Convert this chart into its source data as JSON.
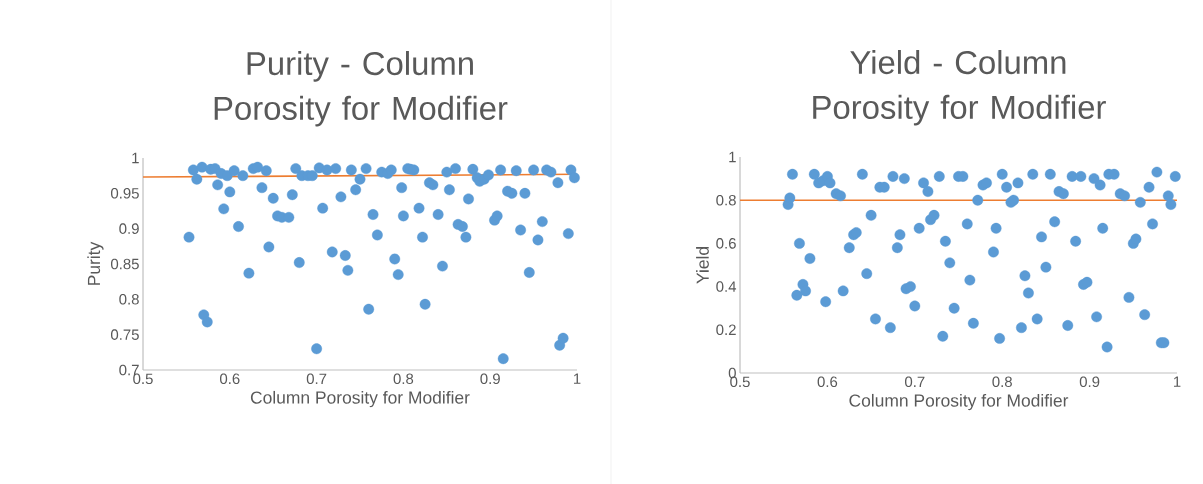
{
  "chart_data": [
    {
      "type": "scatter",
      "title": "Purity - Column Porosity for Modifier",
      "xlabel": "Column Porosity for Modifier",
      "ylabel": "Purity",
      "xlim": [
        0.5,
        1
      ],
      "ylim": [
        0.7,
        1
      ],
      "xticks": [
        0.5,
        0.6,
        0.7,
        0.8,
        0.9,
        1
      ],
      "yticks": [
        0.7,
        0.75,
        0.8,
        0.85,
        0.9,
        0.95,
        1
      ],
      "marker": "circle",
      "series": [
        {
          "color": "#5b9bd5",
          "x": [
            0.553,
            0.558,
            0.562,
            0.568,
            0.57,
            0.574,
            0.578,
            0.583,
            0.586,
            0.59,
            0.593,
            0.597,
            0.6,
            0.605,
            0.61,
            0.615,
            0.622,
            0.627,
            0.632,
            0.637,
            0.642,
            0.645,
            0.65,
            0.655,
            0.66,
            0.668,
            0.672,
            0.676,
            0.68,
            0.683,
            0.69,
            0.695,
            0.7,
            0.703,
            0.707,
            0.712,
            0.718,
            0.722,
            0.728,
            0.733,
            0.736,
            0.74,
            0.745,
            0.75,
            0.757,
            0.76,
            0.765,
            0.77,
            0.775,
            0.782,
            0.786,
            0.79,
            0.794,
            0.798,
            0.8,
            0.805,
            0.808,
            0.812,
            0.818,
            0.822,
            0.825,
            0.83,
            0.834,
            0.84,
            0.845,
            0.85,
            0.853,
            0.86,
            0.863,
            0.868,
            0.872,
            0.875,
            0.88,
            0.885,
            0.888,
            0.893,
            0.898,
            0.905,
            0.908,
            0.912,
            0.915,
            0.92,
            0.925,
            0.93,
            0.935,
            0.94,
            0.945,
            0.95,
            0.955,
            0.96,
            0.965,
            0.97,
            0.978,
            0.98,
            0.984,
            0.99,
            0.993,
            0.997
          ],
          "values": [
            0.888,
            0.983,
            0.97,
            0.987,
            0.778,
            0.768,
            0.984,
            0.985,
            0.962,
            0.978,
            0.928,
            0.975,
            0.952,
            0.982,
            0.903,
            0.975,
            0.837,
            0.985,
            0.987,
            0.958,
            0.982,
            0.874,
            0.943,
            0.918,
            0.916,
            0.916,
            0.948,
            0.985,
            0.852,
            0.975,
            0.975,
            0.975,
            0.73,
            0.986,
            0.929,
            0.983,
            0.867,
            0.985,
            0.945,
            0.862,
            0.841,
            0.983,
            0.955,
            0.97,
            0.985,
            0.786,
            0.92,
            0.891,
            0.98,
            0.978,
            0.983,
            0.857,
            0.835,
            0.958,
            0.918,
            0.985,
            0.984,
            0.983,
            0.929,
            0.888,
            0.793,
            0.965,
            0.962,
            0.92,
            0.847,
            0.98,
            0.955,
            0.985,
            0.906,
            0.903,
            0.888,
            0.942,
            0.984,
            0.972,
            0.967,
            0.97,
            0.976,
            0.912,
            0.918,
            0.983,
            0.716,
            0.953,
            0.95,
            0.982,
            0.898,
            0.95,
            0.838,
            0.983,
            0.884,
            0.91,
            0.983,
            0.98,
            0.965,
            0.735,
            0.745,
            0.893,
            0.983,
            0.972
          ]
        },
        {
          "type": "line",
          "marker": "none",
          "color": "#ed7d31",
          "x": [
            0.5,
            1
          ],
          "values": [
            0.973,
            0.977
          ]
        }
      ]
    },
    {
      "type": "scatter",
      "title": "Yield - Column Porosity for Modifier",
      "xlabel": "Column Porosity for Modifier",
      "ylabel": "Yield",
      "xlim": [
        0.5,
        1
      ],
      "ylim": [
        0,
        1
      ],
      "xticks": [
        0.5,
        0.6,
        0.7,
        0.8,
        0.9,
        1
      ],
      "yticks": [
        0,
        0.2,
        0.4,
        0.6,
        0.8,
        1
      ],
      "marker": "circle",
      "series": [
        {
          "color": "#5b9bd5",
          "x": [
            0.555,
            0.557,
            0.56,
            0.565,
            0.568,
            0.572,
            0.575,
            0.58,
            0.585,
            0.59,
            0.595,
            0.598,
            0.6,
            0.603,
            0.61,
            0.615,
            0.618,
            0.625,
            0.63,
            0.633,
            0.64,
            0.645,
            0.65,
            0.655,
            0.66,
            0.665,
            0.672,
            0.675,
            0.68,
            0.683,
            0.688,
            0.69,
            0.695,
            0.7,
            0.705,
            0.71,
            0.715,
            0.718,
            0.722,
            0.728,
            0.732,
            0.735,
            0.74,
            0.745,
            0.75,
            0.755,
            0.76,
            0.763,
            0.767,
            0.772,
            0.778,
            0.782,
            0.79,
            0.793,
            0.797,
            0.8,
            0.805,
            0.81,
            0.813,
            0.818,
            0.822,
            0.826,
            0.83,
            0.835,
            0.84,
            0.845,
            0.85,
            0.855,
            0.86,
            0.865,
            0.87,
            0.875,
            0.88,
            0.884,
            0.89,
            0.893,
            0.897,
            0.905,
            0.908,
            0.912,
            0.915,
            0.92,
            0.922,
            0.928,
            0.935,
            0.94,
            0.945,
            0.95,
            0.953,
            0.958,
            0.963,
            0.968,
            0.972,
            0.977,
            0.982,
            0.985,
            0.99,
            0.993,
            0.998
          ],
          "values": [
            0.78,
            0.81,
            0.92,
            0.36,
            0.6,
            0.41,
            0.38,
            0.53,
            0.92,
            0.88,
            0.89,
            0.33,
            0.91,
            0.88,
            0.83,
            0.82,
            0.38,
            0.58,
            0.64,
            0.65,
            0.92,
            0.46,
            0.73,
            0.25,
            0.86,
            0.86,
            0.21,
            0.91,
            0.58,
            0.64,
            0.9,
            0.39,
            0.4,
            0.31,
            0.67,
            0.88,
            0.84,
            0.71,
            0.73,
            0.91,
            0.17,
            0.61,
            0.51,
            0.3,
            0.91,
            0.91,
            0.69,
            0.43,
            0.23,
            0.8,
            0.87,
            0.88,
            0.56,
            0.67,
            0.16,
            0.92,
            0.86,
            0.79,
            0.8,
            0.88,
            0.21,
            0.45,
            0.37,
            0.92,
            0.25,
            0.63,
            0.49,
            0.92,
            0.7,
            0.84,
            0.83,
            0.22,
            0.91,
            0.61,
            0.91,
            0.41,
            0.42,
            0.9,
            0.26,
            0.87,
            0.67,
            0.12,
            0.92,
            0.92,
            0.83,
            0.82,
            0.35,
            0.6,
            0.62,
            0.79,
            0.27,
            0.86,
            0.69,
            0.93,
            0.14,
            0.14,
            0.82,
            0.78,
            0.91
          ]
        },
        {
          "type": "line",
          "marker": "none",
          "color": "#ed7d31",
          "x": [
            0.5,
            1
          ],
          "values": [
            0.8,
            0.8
          ]
        }
      ]
    }
  ]
}
